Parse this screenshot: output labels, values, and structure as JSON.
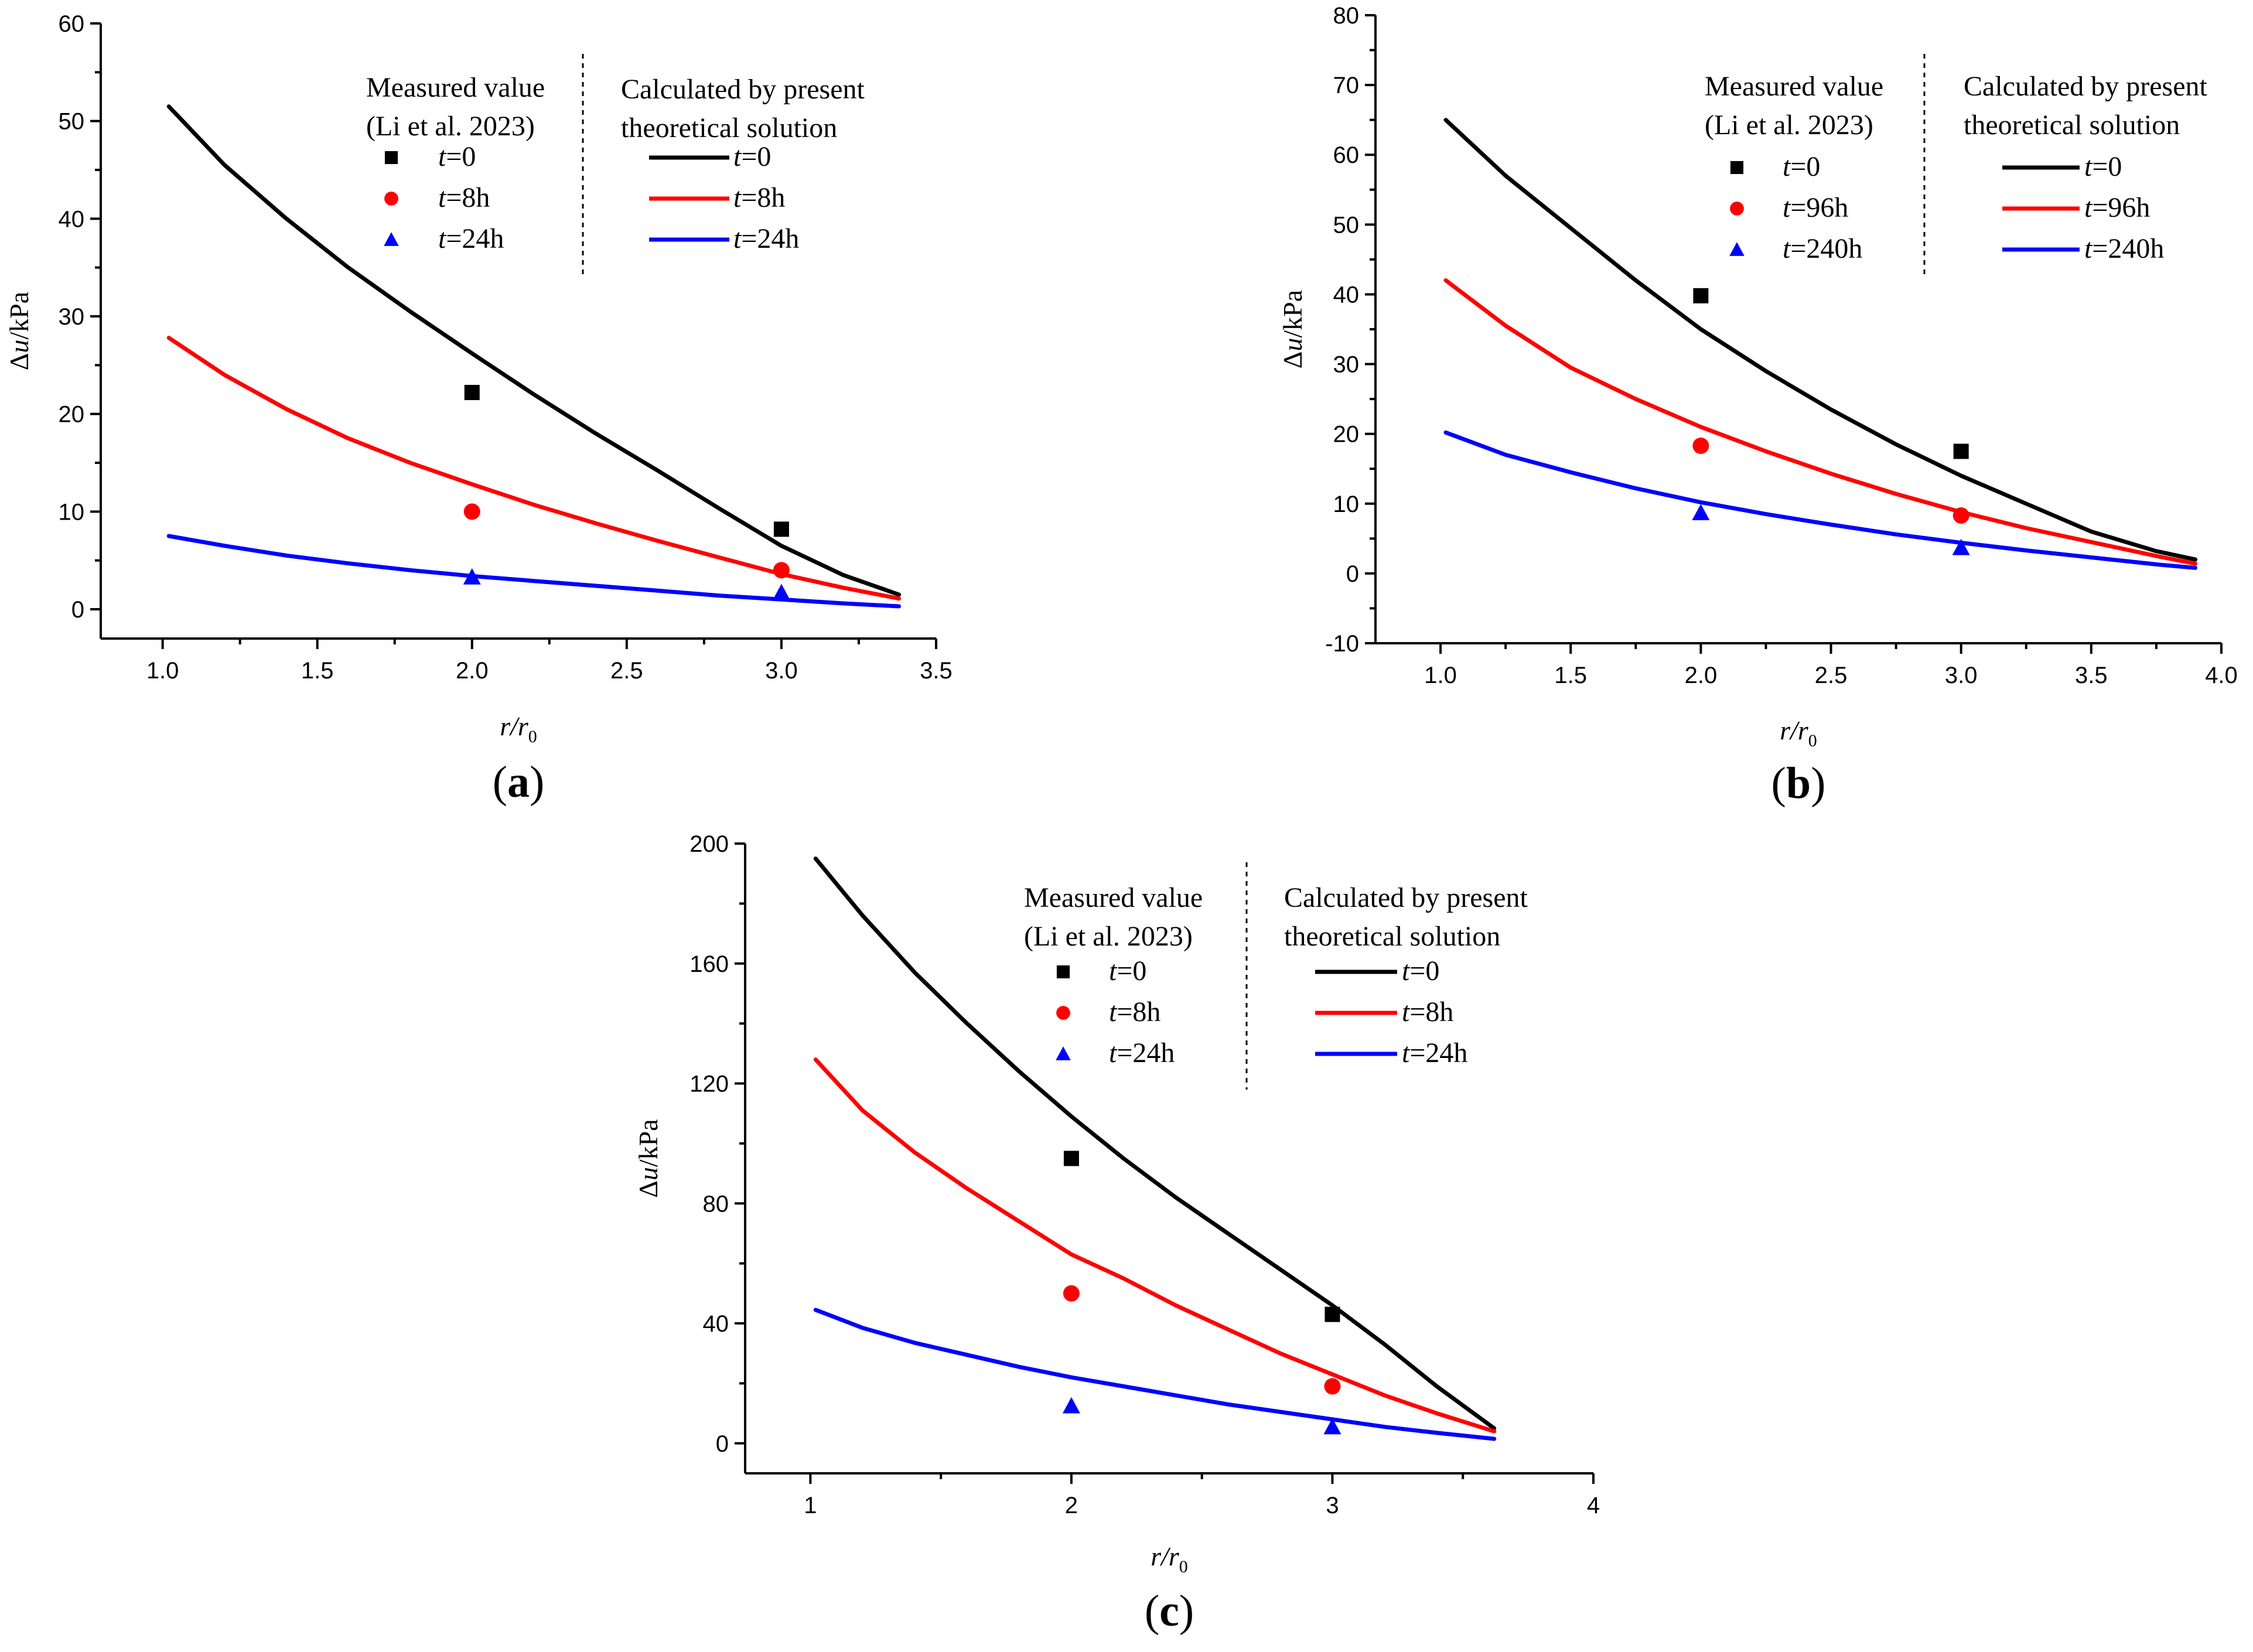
{
  "chart_data": [
    {
      "type": "line",
      "panel": "(a)",
      "panel_letter": "a",
      "xlabel": "r/r0",
      "xlabel_main": "r",
      "xlabel_sep": "/r",
      "xlabel_sub": "0",
      "ylabel": "Δu/kPa",
      "ylabel_delta": "Δ",
      "ylabel_var": "u",
      "ylabel_unit": "/kPa",
      "xlim": [
        0.8,
        3.5
      ],
      "ylim": [
        -3,
        60
      ],
      "xticks": [
        1.0,
        1.5,
        2.0,
        2.5,
        3.0,
        3.5
      ],
      "xtick_labels": [
        "1.0",
        "1.5",
        "2.0",
        "2.5",
        "3.0",
        "3.5"
      ],
      "yticks": [
        0,
        10,
        20,
        30,
        40,
        50,
        60
      ],
      "ytick_labels": [
        "0",
        "10",
        "20",
        "30",
        "40",
        "50",
        "60"
      ],
      "legend_measured_title": [
        "Measured value",
        "(Li et al. 2023)"
      ],
      "legend_calc_title": [
        "Calculated by present",
        "theoretical solution"
      ],
      "series": [
        {
          "name": "t=0",
          "label_var": "t",
          "label_val": "=0",
          "color": "#000000",
          "marker": "square",
          "x": [
            1.02,
            1.2,
            1.4,
            1.6,
            1.8,
            2.0,
            2.2,
            2.4,
            2.6,
            2.8,
            3.0,
            3.2,
            3.38
          ],
          "values": [
            51.5,
            45.5,
            40.0,
            35.0,
            30.5,
            26.2,
            22.0,
            18.0,
            14.2,
            10.3,
            6.5,
            3.5,
            1.5
          ],
          "measured_x": [
            2.0,
            3.0
          ],
          "measured_values": [
            22.2,
            8.2
          ]
        },
        {
          "name": "t=8h",
          "label_var": "t",
          "label_val": "=8h",
          "color": "#ff0000",
          "marker": "circle",
          "x": [
            1.02,
            1.2,
            1.4,
            1.6,
            1.8,
            2.0,
            2.2,
            2.4,
            2.6,
            2.8,
            3.0,
            3.2,
            3.38
          ],
          "values": [
            27.8,
            24.0,
            20.5,
            17.5,
            15.0,
            12.8,
            10.7,
            8.8,
            7.0,
            5.3,
            3.6,
            2.2,
            1.1
          ],
          "measured_x": [
            2.0,
            3.0
          ],
          "measured_values": [
            10.0,
            4.0
          ]
        },
        {
          "name": "t=24h",
          "label_var": "t",
          "label_val": "=24h",
          "color": "#0000ff",
          "marker": "triangle",
          "x": [
            1.02,
            1.2,
            1.4,
            1.6,
            1.8,
            2.0,
            2.2,
            2.4,
            2.6,
            2.8,
            3.0,
            3.2,
            3.38
          ],
          "values": [
            7.5,
            6.5,
            5.5,
            4.7,
            4.0,
            3.4,
            2.9,
            2.4,
            1.9,
            1.4,
            1.0,
            0.6,
            0.3
          ],
          "measured_x": [
            2.0,
            3.0
          ],
          "measured_values": [
            3.3,
            1.7
          ]
        }
      ]
    },
    {
      "type": "line",
      "panel": "(b)",
      "panel_letter": "b",
      "xlabel": "r/r0",
      "xlabel_main": "r",
      "xlabel_sep": "/r",
      "xlabel_sub": "0",
      "ylabel": "Δu/kPa",
      "ylabel_delta": "Δ",
      "ylabel_var": "u",
      "ylabel_unit": "/kPa",
      "xlim": [
        0.75,
        4.0
      ],
      "ylim": [
        -10,
        80
      ],
      "xticks": [
        1.0,
        1.5,
        2.0,
        2.5,
        3.0,
        3.5,
        4.0
      ],
      "xtick_labels": [
        "1.0",
        "1.5",
        "2.0",
        "2.5",
        "3.0",
        "3.5",
        "4.0"
      ],
      "yticks": [
        -10,
        0,
        10,
        20,
        30,
        40,
        50,
        60,
        70,
        80
      ],
      "ytick_labels": [
        "-10",
        "0",
        "10",
        "20",
        "30",
        "40",
        "50",
        "60",
        "70",
        "80"
      ],
      "legend_measured_title": [
        "Measured value",
        "(Li et al. 2023)"
      ],
      "legend_calc_title": [
        "Calculated by present",
        "theoretical solution"
      ],
      "series": [
        {
          "name": "t=0",
          "label_var": "t",
          "label_val": "=0",
          "color": "#000000",
          "marker": "square",
          "x": [
            1.02,
            1.25,
            1.5,
            1.75,
            2.0,
            2.25,
            2.5,
            2.75,
            3.0,
            3.25,
            3.5,
            3.75,
            3.9
          ],
          "values": [
            65.0,
            57.0,
            49.5,
            42.0,
            35.0,
            29.0,
            23.5,
            18.5,
            14.0,
            10.0,
            6.0,
            3.2,
            2.0
          ],
          "measured_x": [
            2.0,
            3.0
          ],
          "measured_values": [
            39.8,
            17.5
          ]
        },
        {
          "name": "t=96h",
          "label_var": "t",
          "label_val": "=96h",
          "color": "#ff0000",
          "marker": "circle",
          "x": [
            1.02,
            1.25,
            1.5,
            1.75,
            2.0,
            2.25,
            2.5,
            2.75,
            3.0,
            3.25,
            3.5,
            3.75,
            3.9
          ],
          "values": [
            42.0,
            35.5,
            29.5,
            25.0,
            21.0,
            17.5,
            14.3,
            11.4,
            8.8,
            6.5,
            4.5,
            2.5,
            1.4
          ],
          "measured_x": [
            2.0,
            3.0
          ],
          "measured_values": [
            18.3,
            8.3
          ]
        },
        {
          "name": "t=240h",
          "label_var": "t",
          "label_val": "=240h",
          "color": "#0000ff",
          "marker": "triangle",
          "x": [
            1.02,
            1.25,
            1.5,
            1.75,
            2.0,
            2.25,
            2.5,
            2.75,
            3.0,
            3.25,
            3.5,
            3.75,
            3.9
          ],
          "values": [
            20.2,
            17.0,
            14.5,
            12.2,
            10.2,
            8.5,
            7.0,
            5.6,
            4.4,
            3.3,
            2.3,
            1.3,
            0.8
          ],
          "measured_x": [
            2.0,
            3.0
          ],
          "measured_values": [
            8.7,
            3.7
          ]
        }
      ]
    },
    {
      "type": "line",
      "panel": "(c)",
      "panel_letter": "c",
      "xlabel": "r/r0",
      "xlabel_main": "r",
      "xlabel_sep": "/r",
      "xlabel_sub": "0",
      "ylabel": "Δu/kPa",
      "ylabel_delta": "Δ",
      "ylabel_var": "u",
      "ylabel_unit": "/kPa",
      "xlim": [
        0.75,
        4.0
      ],
      "ylim": [
        -10,
        200
      ],
      "xticks": [
        1,
        2,
        3,
        4
      ],
      "xtick_labels": [
        "1",
        "2",
        "3",
        "4"
      ],
      "minor_xticks": [
        1.5,
        2.5,
        3.5
      ],
      "yticks": [
        0,
        40,
        80,
        120,
        160,
        200
      ],
      "ytick_labels": [
        "0",
        "40",
        "80",
        "120",
        "160",
        "200"
      ],
      "legend_measured_title": [
        "Measured value",
        "(Li et al. 2023)"
      ],
      "legend_calc_title": [
        "Calculated by present",
        "theoretical solution"
      ],
      "series": [
        {
          "name": "t=0",
          "label_var": "t",
          "label_val": "=0",
          "color": "#000000",
          "marker": "square",
          "x": [
            1.02,
            1.2,
            1.4,
            1.6,
            1.8,
            2.0,
            2.2,
            2.4,
            2.6,
            2.8,
            3.0,
            3.2,
            3.4,
            3.62
          ],
          "values": [
            195,
            176,
            157,
            140,
            124,
            109,
            95,
            82,
            70,
            58,
            46,
            33,
            19,
            5
          ],
          "measured_x": [
            2.0,
            3.0
          ],
          "measured_values": [
            95,
            43
          ]
        },
        {
          "name": "t=8h",
          "label_var": "t",
          "label_val": "=8h",
          "color": "#ff0000",
          "marker": "circle",
          "x": [
            1.02,
            1.2,
            1.4,
            1.6,
            1.8,
            2.0,
            2.2,
            2.4,
            2.6,
            2.8,
            3.0,
            3.2,
            3.4,
            3.62
          ],
          "values": [
            128,
            111,
            97,
            85,
            74,
            63,
            55,
            46,
            38,
            30,
            23,
            16,
            10,
            4
          ],
          "measured_x": [
            2.0,
            3.0
          ],
          "measured_values": [
            50,
            19
          ]
        },
        {
          "name": "t=24h",
          "label_var": "t",
          "label_val": "=24h",
          "color": "#0000ff",
          "marker": "triangle",
          "x": [
            1.02,
            1.2,
            1.4,
            1.6,
            1.8,
            2.0,
            2.2,
            2.4,
            2.6,
            2.8,
            3.0,
            3.2,
            3.4,
            3.62
          ],
          "values": [
            44.5,
            38.5,
            33.5,
            29.5,
            25.5,
            22.0,
            19.0,
            16.0,
            13.0,
            10.5,
            8.0,
            5.5,
            3.5,
            1.5
          ],
          "measured_x": [
            2.0,
            3.0
          ],
          "measured_values": [
            12.5,
            5.5
          ]
        }
      ]
    }
  ]
}
